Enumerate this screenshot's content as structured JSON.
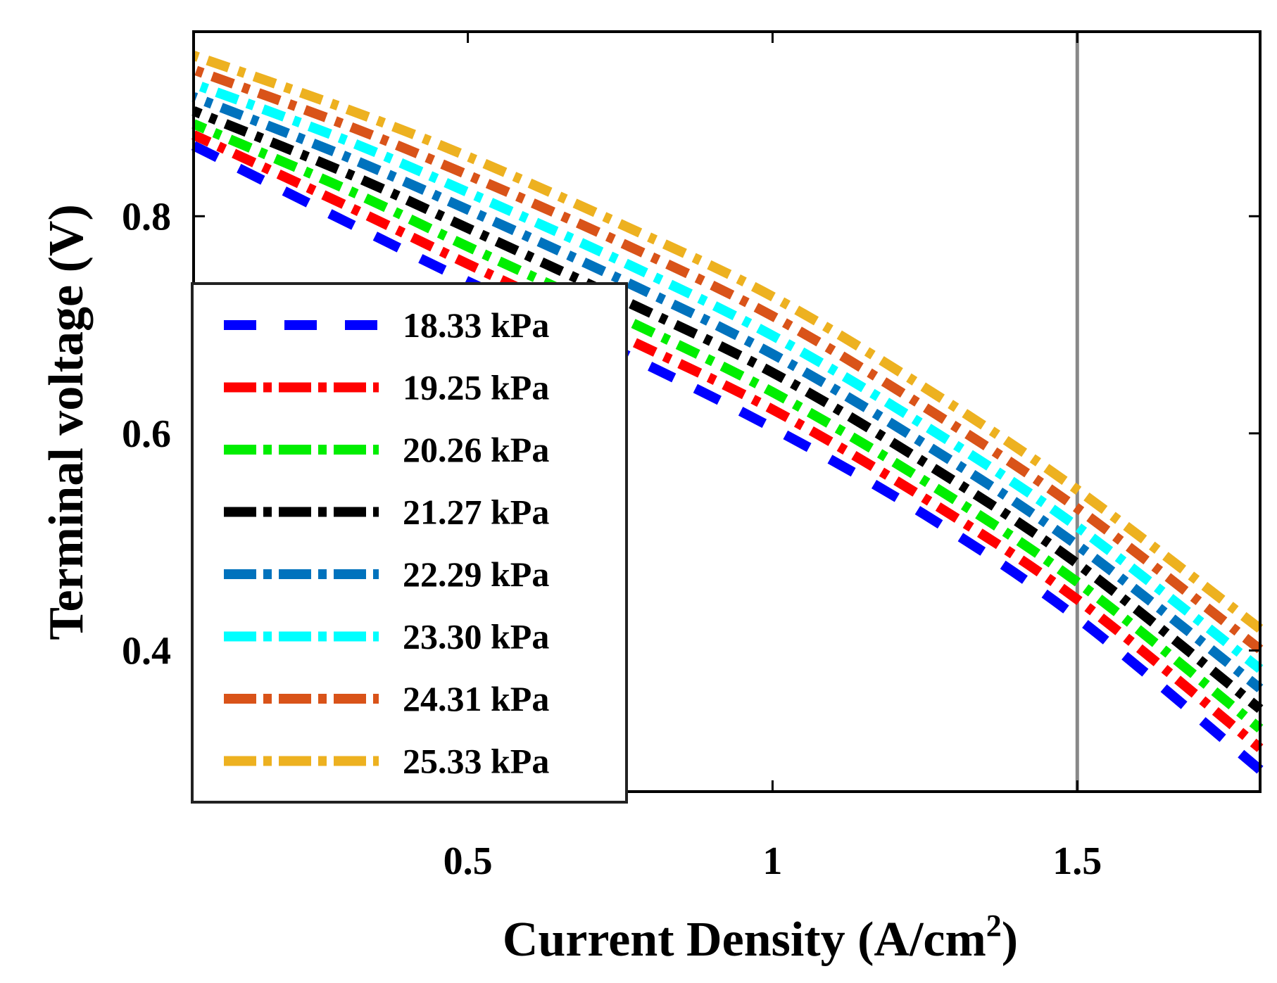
{
  "chart_data": {
    "type": "line",
    "xlabel": "Current Density (A/cm",
    "xlabel_sup": "2",
    "xlabel_close": ")",
    "ylabel": "Terminal voltage (V)",
    "xlim": [
      0.05,
      1.8
    ],
    "ylim": [
      0.27,
      0.97
    ],
    "xticks": [
      0.5,
      1,
      1.5
    ],
    "xtick_labels": [
      "0.5",
      "1",
      "1.5"
    ],
    "yticks": [
      0.4,
      0.6,
      0.8
    ],
    "ytick_labels": [
      "0.4",
      "0.6",
      "0.8"
    ],
    "reference_line_x": 1.5,
    "legend_position": "lower-left",
    "x": [
      0.05,
      0.3,
      0.5,
      0.75,
      1.0,
      1.25,
      1.5,
      1.8
    ],
    "series": [
      {
        "name": "18.33 kPa",
        "color": "#0000ff",
        "dash": "dashed",
        "values": [
          0.865,
          0.795,
          0.74,
          0.675,
          0.605,
          0.525,
          0.43,
          0.29
        ]
      },
      {
        "name": "19.25 kPa",
        "color": "#ff0000",
        "dash": "dashdot",
        "values": [
          0.875,
          0.81,
          0.756,
          0.69,
          0.622,
          0.54,
          0.447,
          0.31
        ]
      },
      {
        "name": "20.26 kPa",
        "color": "#00ee00",
        "dash": "dashdot",
        "values": [
          0.885,
          0.825,
          0.772,
          0.707,
          0.638,
          0.556,
          0.463,
          0.328
        ]
      },
      {
        "name": "21.27 kPa",
        "color": "#000000",
        "dash": "dashdot",
        "values": [
          0.897,
          0.84,
          0.789,
          0.724,
          0.656,
          0.573,
          0.48,
          0.346
        ]
      },
      {
        "name": "22.29 kPa",
        "color": "#0072bd",
        "dash": "dashdot",
        "values": [
          0.91,
          0.855,
          0.806,
          0.742,
          0.673,
          0.59,
          0.497,
          0.365
        ]
      },
      {
        "name": "23.30 kPa",
        "color": "#00ffff",
        "dash": "dashdot",
        "values": [
          0.922,
          0.87,
          0.822,
          0.759,
          0.69,
          0.607,
          0.514,
          0.383
        ]
      },
      {
        "name": "24.31 kPa",
        "color": "#d95319",
        "dash": "dashdot",
        "values": [
          0.935,
          0.884,
          0.838,
          0.776,
          0.708,
          0.624,
          0.531,
          0.401
        ]
      },
      {
        "name": "25.33 kPa",
        "color": "#edb120",
        "dash": "dashdot",
        "values": [
          0.948,
          0.899,
          0.855,
          0.793,
          0.726,
          0.642,
          0.548,
          0.42
        ]
      }
    ]
  }
}
